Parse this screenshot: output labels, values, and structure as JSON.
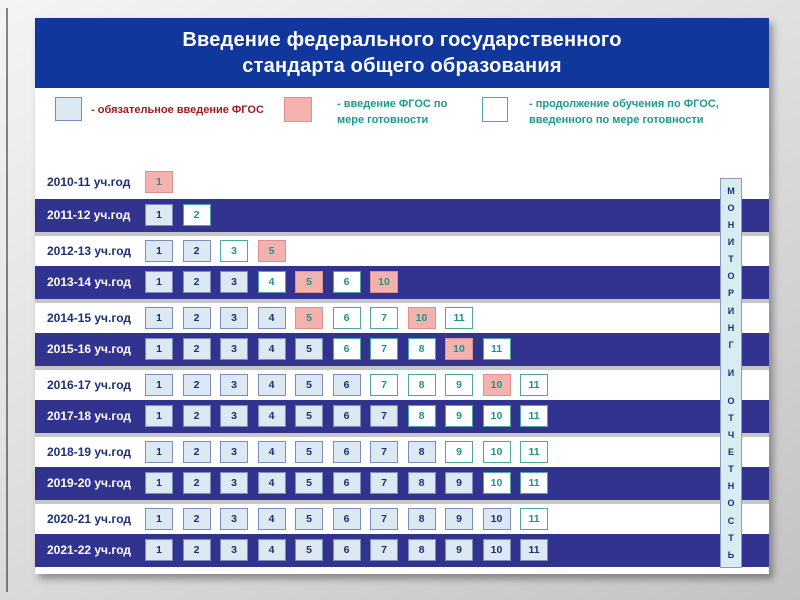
{
  "slide": {
    "title_line1": "Введение федерального государственного",
    "title_line2": "стандарта общего образования"
  },
  "legend": {
    "items": [
      {
        "key": "mandatory",
        "label": "- обязательное введение ФГОС",
        "swatch_color": "#dce8f2",
        "text_color": "#9e1a1a"
      },
      {
        "key": "as-ready",
        "label": "- введение ФГОС по мере готовности",
        "swatch_color": "#f4b2af",
        "text_color": "#1b9a8f"
      },
      {
        "key": "continuation",
        "label": "- продолжение обучения по ФГОС, введенного по мере готовности",
        "swatch_color": "#ffffff",
        "text_color": "#1b9a8f"
      }
    ]
  },
  "rows": [
    {
      "year": "2010-11 уч.год",
      "cells": [
        {
          "grade": "1",
          "type": "as-ready"
        }
      ]
    },
    {
      "year": "2011-12 уч.год",
      "cells": [
        {
          "grade": "1",
          "type": "mandatory"
        },
        {
          "grade": "2",
          "type": "continuation"
        }
      ]
    },
    {
      "year": "2012-13 уч.год",
      "cells": [
        {
          "grade": "1",
          "type": "mandatory"
        },
        {
          "grade": "2",
          "type": "mandatory"
        },
        {
          "grade": "3",
          "type": "continuation"
        },
        {
          "grade": "5",
          "type": "as-ready"
        }
      ]
    },
    {
      "year": "2013-14 уч.год",
      "cells": [
        {
          "grade": "1",
          "type": "mandatory"
        },
        {
          "grade": "2",
          "type": "mandatory"
        },
        {
          "grade": "3",
          "type": "mandatory"
        },
        {
          "grade": "4",
          "type": "continuation"
        },
        {
          "grade": "5",
          "type": "as-ready"
        },
        {
          "grade": "6",
          "type": "continuation"
        },
        {
          "grade": "10",
          "type": "as-ready"
        }
      ]
    },
    {
      "year": "2014-15 уч.год",
      "cells": [
        {
          "grade": "1",
          "type": "mandatory"
        },
        {
          "grade": "2",
          "type": "mandatory"
        },
        {
          "grade": "3",
          "type": "mandatory"
        },
        {
          "grade": "4",
          "type": "mandatory"
        },
        {
          "grade": "5",
          "type": "as-ready"
        },
        {
          "grade": "6",
          "type": "continuation"
        },
        {
          "grade": "7",
          "type": "continuation"
        },
        {
          "grade": "10",
          "type": "as-ready"
        },
        {
          "grade": "11",
          "type": "continuation"
        }
      ]
    },
    {
      "year": "2015-16 уч.год",
      "cells": [
        {
          "grade": "1",
          "type": "mandatory"
        },
        {
          "grade": "2",
          "type": "mandatory"
        },
        {
          "grade": "3",
          "type": "mandatory"
        },
        {
          "grade": "4",
          "type": "mandatory"
        },
        {
          "grade": "5",
          "type": "mandatory"
        },
        {
          "grade": "6",
          "type": "continuation"
        },
        {
          "grade": "7",
          "type": "continuation"
        },
        {
          "grade": "8",
          "type": "continuation"
        },
        {
          "grade": "10",
          "type": "as-ready"
        },
        {
          "grade": "11",
          "type": "continuation"
        }
      ]
    },
    {
      "year": "2016-17 уч.год",
      "cells": [
        {
          "grade": "1",
          "type": "mandatory"
        },
        {
          "grade": "2",
          "type": "mandatory"
        },
        {
          "grade": "3",
          "type": "mandatory"
        },
        {
          "grade": "4",
          "type": "mandatory"
        },
        {
          "grade": "5",
          "type": "mandatory"
        },
        {
          "grade": "6",
          "type": "mandatory"
        },
        {
          "grade": "7",
          "type": "continuation"
        },
        {
          "grade": "8",
          "type": "continuation"
        },
        {
          "grade": "9",
          "type": "continuation"
        },
        {
          "grade": "10",
          "type": "as-ready"
        },
        {
          "grade": "11",
          "type": "continuation"
        }
      ]
    },
    {
      "year": "2017-18 уч.год",
      "cells": [
        {
          "grade": "1",
          "type": "mandatory"
        },
        {
          "grade": "2",
          "type": "mandatory"
        },
        {
          "grade": "3",
          "type": "mandatory"
        },
        {
          "grade": "4",
          "type": "mandatory"
        },
        {
          "grade": "5",
          "type": "mandatory"
        },
        {
          "grade": "6",
          "type": "mandatory"
        },
        {
          "grade": "7",
          "type": "mandatory"
        },
        {
          "grade": "8",
          "type": "continuation"
        },
        {
          "grade": "9",
          "type": "continuation"
        },
        {
          "grade": "10",
          "type": "continuation"
        },
        {
          "grade": "11",
          "type": "continuation"
        }
      ]
    },
    {
      "year": "2018-19 уч.год",
      "cells": [
        {
          "grade": "1",
          "type": "mandatory"
        },
        {
          "grade": "2",
          "type": "mandatory"
        },
        {
          "grade": "3",
          "type": "mandatory"
        },
        {
          "grade": "4",
          "type": "mandatory"
        },
        {
          "grade": "5",
          "type": "mandatory"
        },
        {
          "grade": "6",
          "type": "mandatory"
        },
        {
          "grade": "7",
          "type": "mandatory"
        },
        {
          "grade": "8",
          "type": "mandatory"
        },
        {
          "grade": "9",
          "type": "continuation"
        },
        {
          "grade": "10",
          "type": "continuation"
        },
        {
          "grade": "11",
          "type": "continuation"
        }
      ]
    },
    {
      "year": "2019-20 уч.год",
      "cells": [
        {
          "grade": "1",
          "type": "mandatory"
        },
        {
          "grade": "2",
          "type": "mandatory"
        },
        {
          "grade": "3",
          "type": "mandatory"
        },
        {
          "grade": "4",
          "type": "mandatory"
        },
        {
          "grade": "5",
          "type": "mandatory"
        },
        {
          "grade": "6",
          "type": "mandatory"
        },
        {
          "grade": "7",
          "type": "mandatory"
        },
        {
          "grade": "8",
          "type": "mandatory"
        },
        {
          "grade": "9",
          "type": "mandatory"
        },
        {
          "grade": "10",
          "type": "continuation"
        },
        {
          "grade": "11",
          "type": "continuation"
        }
      ]
    },
    {
      "year": "2020-21 уч.год",
      "cells": [
        {
          "grade": "1",
          "type": "mandatory"
        },
        {
          "grade": "2",
          "type": "mandatory"
        },
        {
          "grade": "3",
          "type": "mandatory"
        },
        {
          "grade": "4",
          "type": "mandatory"
        },
        {
          "grade": "5",
          "type": "mandatory"
        },
        {
          "grade": "6",
          "type": "mandatory"
        },
        {
          "grade": "7",
          "type": "mandatory"
        },
        {
          "grade": "8",
          "type": "mandatory"
        },
        {
          "grade": "9",
          "type": "mandatory"
        },
        {
          "grade": "10",
          "type": "mandatory"
        },
        {
          "grade": "11",
          "type": "continuation"
        }
      ]
    },
    {
      "year": "2021-22 уч.год",
      "cells": [
        {
          "grade": "1",
          "type": "mandatory"
        },
        {
          "grade": "2",
          "type": "mandatory"
        },
        {
          "grade": "3",
          "type": "mandatory"
        },
        {
          "grade": "4",
          "type": "mandatory"
        },
        {
          "grade": "5",
          "type": "mandatory"
        },
        {
          "grade": "6",
          "type": "mandatory"
        },
        {
          "grade": "7",
          "type": "mandatory"
        },
        {
          "grade": "8",
          "type": "mandatory"
        },
        {
          "grade": "9",
          "type": "mandatory"
        },
        {
          "grade": "10",
          "type": "mandatory"
        },
        {
          "grade": "11",
          "type": "mandatory"
        }
      ]
    }
  ],
  "sidebar": {
    "vertical_label": "МОНИТОРИНГ И ОТЧЕТНОСТЬ"
  },
  "colors": {
    "header_bg": "#10379c",
    "dark_row_bg": "#32338f",
    "mandatory_cell": "#dce8f2",
    "as_ready_cell": "#f4b2af",
    "continuation_cell": "#ffffff",
    "navy_text": "#1b2f77",
    "teal_text": "#1d948a",
    "legend_red": "#9e1a1a",
    "separator_gray": "#c6c6c6"
  }
}
